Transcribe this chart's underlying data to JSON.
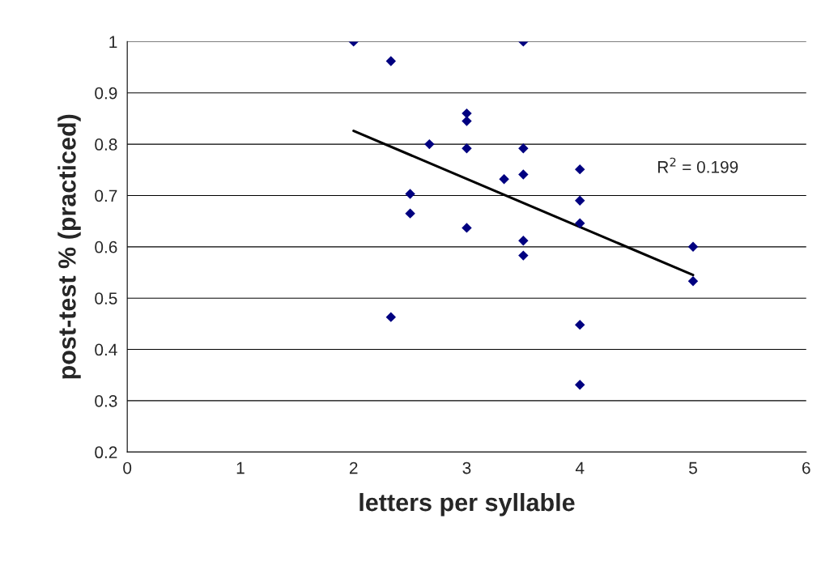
{
  "chart_data": {
    "type": "scatter",
    "xlabel": "letters per syllable",
    "ylabel": "post-test % (practiced)",
    "annotations": [
      "R$^{2}$ = 0.199"
    ],
    "series": [
      {
        "color": "#000080",
        "marker": "diamond",
        "x": [
          2,
          2.33,
          3.5,
          3,
          3,
          2.67,
          3,
          3.5,
          4,
          3.5,
          3.33,
          2.5,
          4,
          2.5,
          4,
          3,
          3.5,
          5,
          3.5,
          5,
          2.33,
          4,
          4
        ],
        "values": [
          1.0,
          0.962,
          1.0,
          0.86,
          0.845,
          0.8,
          0.792,
          0.792,
          0.751,
          0.741,
          0.732,
          0.703,
          0.69,
          0.665,
          0.646,
          0.637,
          0.612,
          0.6,
          0.583,
          0.533,
          0.463,
          0.448,
          0.331
        ]
      },
      {
        "type": "line",
        "color": "#000000",
        "marker": "none",
        "x": [
          2,
          5
        ],
        "values": [
          0.826,
          0.545
        ]
      }
    ],
    "xlim": [
      0,
      6
    ],
    "xticks": [
      0,
      1,
      2,
      3,
      4,
      5,
      6
    ],
    "ylim": [
      0.2,
      1
    ],
    "yticks": [
      0.2,
      0.3,
      0.4,
      0.5,
      0.6,
      0.7,
      0.8,
      0.9,
      1
    ],
    "grid": "y",
    "legend": false
  }
}
